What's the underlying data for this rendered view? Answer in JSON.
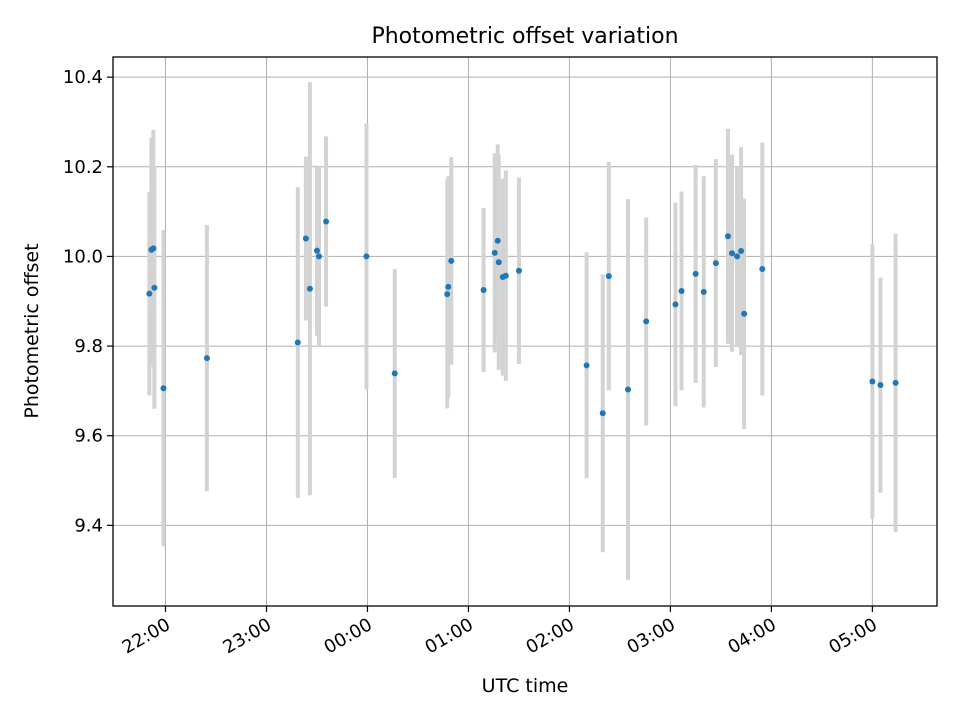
{
  "chart_data": {
    "type": "scatter",
    "title": "Photometric offset variation",
    "xlabel": "UTC time",
    "ylabel": "Photometric offset",
    "xlim": [
      -0.52,
      7.64
    ],
    "ylim": [
      9.22,
      10.445
    ],
    "grid": true,
    "x_ticks": [
      {
        "value": 0,
        "label": "22:00"
      },
      {
        "value": 1,
        "label": "23:00"
      },
      {
        "value": 2,
        "label": "00:00"
      },
      {
        "value": 3,
        "label": "01:00"
      },
      {
        "value": 4,
        "label": "02:00"
      },
      {
        "value": 5,
        "label": "03:00"
      },
      {
        "value": 6,
        "label": "04:00"
      },
      {
        "value": 7,
        "label": "05:00"
      }
    ],
    "y_ticks": [
      {
        "value": 9.4,
        "label": "9.4"
      },
      {
        "value": 9.6,
        "label": "9.6"
      },
      {
        "value": 9.8,
        "label": "9.8"
      },
      {
        "value": 10.0,
        "label": "10.0"
      },
      {
        "value": 10.2,
        "label": "10.2"
      },
      {
        "value": 10.4,
        "label": "10.4"
      }
    ],
    "x_units": "hours after 22:00 UTC",
    "series": [
      {
        "name": "offset",
        "marker_color": "#1f77b4",
        "errorbar_color": "#d3d3d3",
        "points": [
          {
            "x": -0.16,
            "y": 9.917,
            "err": 0.227
          },
          {
            "x": -0.14,
            "y": 10.015,
            "err": 0.25
          },
          {
            "x": -0.12,
            "y": 10.018,
            "err": 0.265
          },
          {
            "x": -0.11,
            "y": 9.93,
            "err": 0.27
          },
          {
            "x": -0.02,
            "y": 9.706,
            "err": 0.353
          },
          {
            "x": 0.41,
            "y": 9.773,
            "err": 0.297
          },
          {
            "x": 1.31,
            "y": 9.808,
            "err": 0.347
          },
          {
            "x": 1.39,
            "y": 10.04,
            "err": 0.183
          },
          {
            "x": 1.43,
            "y": 9.928,
            "err": 0.461
          },
          {
            "x": 1.5,
            "y": 10.013,
            "err": 0.19
          },
          {
            "x": 1.52,
            "y": 10.0,
            "err": 0.2
          },
          {
            "x": 1.59,
            "y": 10.078,
            "err": 0.19
          },
          {
            "x": 1.99,
            "y": 10.0,
            "err": 0.297
          },
          {
            "x": 2.27,
            "y": 9.739,
            "err": 0.233
          },
          {
            "x": 2.79,
            "y": 9.916,
            "err": 0.255
          },
          {
            "x": 2.8,
            "y": 9.932,
            "err": 0.247
          },
          {
            "x": 2.83,
            "y": 9.99,
            "err": 0.232
          },
          {
            "x": 3.15,
            "y": 9.925,
            "err": 0.183
          },
          {
            "x": 3.26,
            "y": 10.008,
            "err": 0.222
          },
          {
            "x": 3.29,
            "y": 10.035,
            "err": 0.215
          },
          {
            "x": 3.3,
            "y": 9.987,
            "err": 0.24
          },
          {
            "x": 3.34,
            "y": 9.954,
            "err": 0.22
          },
          {
            "x": 3.37,
            "y": 9.957,
            "err": 0.235
          },
          {
            "x": 3.5,
            "y": 9.968,
            "err": 0.208
          },
          {
            "x": 4.17,
            "y": 9.757,
            "err": 0.252
          },
          {
            "x": 4.33,
            "y": 9.65,
            "err": 0.31
          },
          {
            "x": 4.39,
            "y": 9.956,
            "err": 0.255
          },
          {
            "x": 4.58,
            "y": 9.703,
            "err": 0.425
          },
          {
            "x": 4.76,
            "y": 9.855,
            "err": 0.232
          },
          {
            "x": 5.05,
            "y": 9.893,
            "err": 0.227
          },
          {
            "x": 5.11,
            "y": 9.923,
            "err": 0.222
          },
          {
            "x": 5.25,
            "y": 9.961,
            "err": 0.243
          },
          {
            "x": 5.33,
            "y": 9.921,
            "err": 0.258
          },
          {
            "x": 5.45,
            "y": 9.985,
            "err": 0.232
          },
          {
            "x": 5.57,
            "y": 10.045,
            "err": 0.24
          },
          {
            "x": 5.61,
            "y": 10.007,
            "err": 0.22
          },
          {
            "x": 5.66,
            "y": 10.0,
            "err": 0.2
          },
          {
            "x": 5.7,
            "y": 10.012,
            "err": 0.232
          },
          {
            "x": 5.73,
            "y": 9.872,
            "err": 0.257
          },
          {
            "x": 5.91,
            "y": 9.972,
            "err": 0.282
          },
          {
            "x": 7.0,
            "y": 9.721,
            "err": 0.306
          },
          {
            "x": 7.08,
            "y": 9.713,
            "err": 0.24
          },
          {
            "x": 7.23,
            "y": 9.718,
            "err": 0.333
          }
        ]
      }
    ]
  }
}
